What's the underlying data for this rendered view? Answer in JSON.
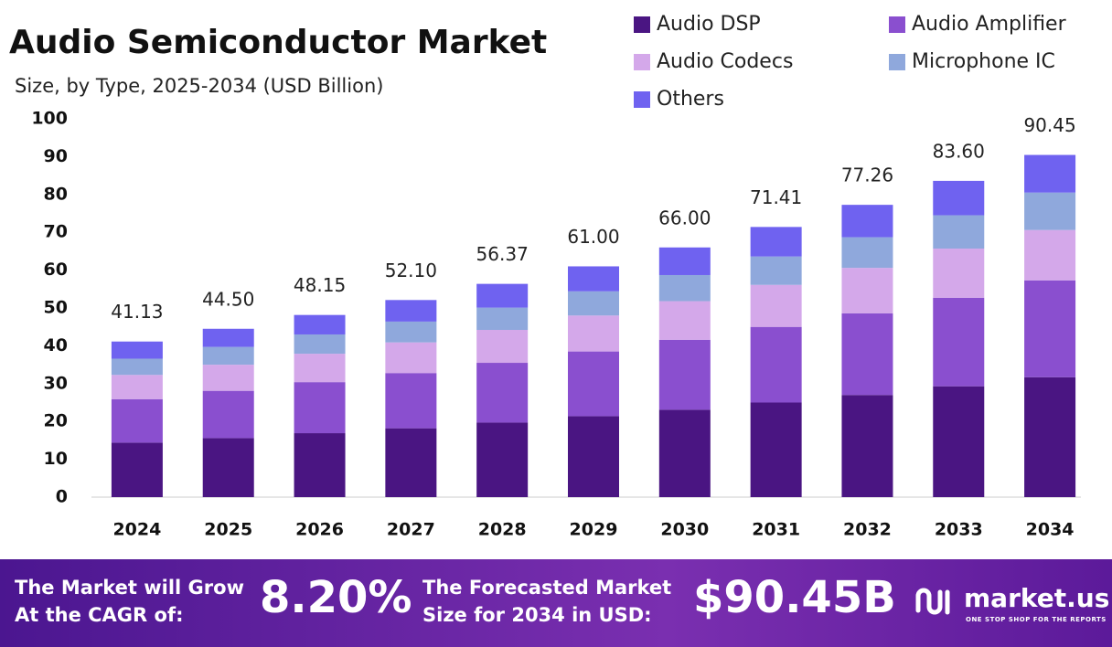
{
  "chart_data": {
    "type": "stacked_bar",
    "title": "Audio Semiconductor Market",
    "subtitle": "Size, by Type, 2025-2034 (USD Billion)",
    "categories": [
      "2024",
      "2025",
      "2026",
      "2027",
      "2028",
      "2029",
      "2030",
      "2031",
      "2032",
      "2033",
      "2034"
    ],
    "series": [
      {
        "name": "Audio DSP",
        "color": "#4a1582",
        "values": [
          14.4,
          15.6,
          16.9,
          18.2,
          19.7,
          21.4,
          23.1,
          25.0,
          27.0,
          29.3,
          31.7
        ]
      },
      {
        "name": "Audio Amplifier",
        "color": "#8a4fcf",
        "values": [
          11.5,
          12.5,
          13.5,
          14.6,
          15.8,
          17.1,
          18.5,
          20.0,
          21.6,
          23.4,
          25.6
        ]
      },
      {
        "name": "Audio Codecs",
        "color": "#d4a8ea",
        "values": [
          6.4,
          6.9,
          7.5,
          8.1,
          8.7,
          9.5,
          10.2,
          11.1,
          12.0,
          13.0,
          13.3
        ]
      },
      {
        "name": "Microphone IC",
        "color": "#8fa8dc",
        "values": [
          4.3,
          4.7,
          5.1,
          5.5,
          5.9,
          6.4,
          6.9,
          7.5,
          8.1,
          8.8,
          9.9
        ]
      },
      {
        "name": "Others",
        "color": "#6f62f0",
        "values": [
          4.53,
          4.8,
          5.15,
          5.7,
          6.27,
          6.6,
          7.3,
          7.81,
          8.56,
          9.1,
          9.95
        ]
      }
    ],
    "totals": {
      "values": [
        41.13,
        44.5,
        48.15,
        52.1,
        56.37,
        61,
        66,
        71.41,
        77.26,
        83.6,
        90.45
      ],
      "value_labels": [
        "41.13",
        "44.50",
        "48.15",
        "52.10",
        "56.37",
        "61.00",
        "66.00",
        "71.41",
        "77.26",
        "83.60",
        "90.45"
      ]
    },
    "ylim": [
      0,
      100
    ],
    "yticks": [
      0,
      10,
      20,
      30,
      40,
      50,
      60,
      70,
      80,
      90,
      100
    ],
    "grid": false
  },
  "footer": {
    "cagr_text": [
      "The Market will Grow",
      "At the CAGR of:"
    ],
    "cagr_value": "8.20%",
    "forecast_text": [
      "The Forecasted Market",
      "Size for 2034 in USD:"
    ],
    "forecast_value": "$90.45B",
    "brand": "market.us",
    "tagline": "ONE STOP SHOP FOR THE REPORTS"
  }
}
